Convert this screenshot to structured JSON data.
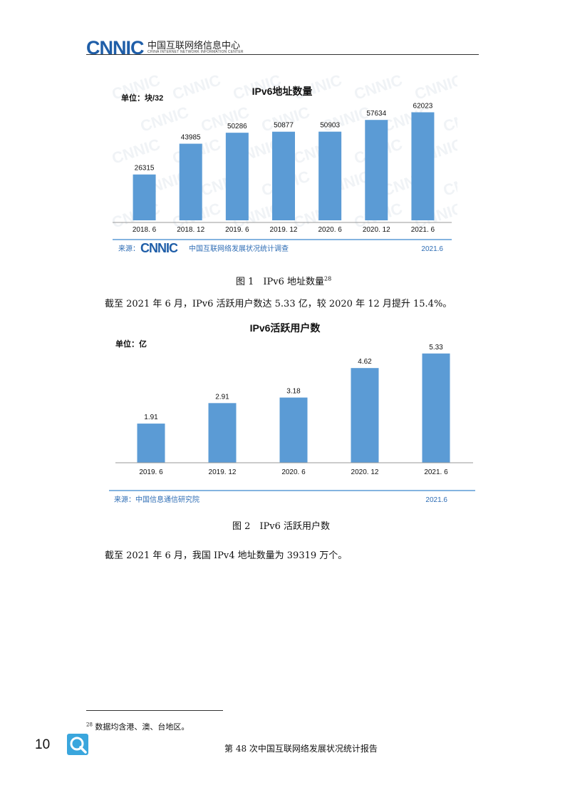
{
  "header": {
    "logo": "CNNIC",
    "org_cn": "中国互联网络信息中心",
    "org_en": "CHINA INTERNET NETWORK INFORMATION CENTER"
  },
  "chart1": {
    "caption": "图 1　IPv6 地址数量",
    "caption_sup": "28",
    "source_label": "来源：",
    "source_logo": "CNNIC",
    "source_text": "中国互联网络发展状况统计调查",
    "source_date": "2021.6",
    "chart_data": {
      "type": "bar",
      "title": "IPv6地址数量",
      "unit": "单位：块/32",
      "categories": [
        "2018. 6",
        "2018. 12",
        "2019. 6",
        "2019. 12",
        "2020. 6",
        "2020. 12",
        "2021. 6"
      ],
      "values": [
        26315,
        43985,
        50286,
        50877,
        50903,
        57634,
        62023
      ],
      "ylim": [
        0,
        70000
      ],
      "color": "#5b9bd5"
    }
  },
  "para1": "截至 2021 年 6 月，IPv6 活跃用户数达 5.33 亿，较 2020 年 12 月提升 15.4%。",
  "chart2": {
    "caption": "图 2　IPv6 活跃用户数",
    "source_label": "来源：中国信息通信研究院",
    "source_date": "2021.6",
    "chart_data": {
      "type": "bar",
      "title": "IPv6活跃用户数",
      "unit": "单位：亿",
      "categories": [
        "2019. 6",
        "2019. 12",
        "2020. 6",
        "2020. 12",
        "2021. 6"
      ],
      "values": [
        1.91,
        2.91,
        3.18,
        4.62,
        5.33
      ],
      "ylim": [
        0,
        5.6
      ],
      "color": "#5b9bd5"
    }
  },
  "para2": "截至 2021 年 6 月，我国 IPv4 地址数量为 39319 万个。",
  "footnote": {
    "mark": "28",
    "text": "数据均含港、澳、台地区。"
  },
  "footer": {
    "page": "10",
    "title": "第 48 次中国互联网络发展状况统计报告"
  }
}
